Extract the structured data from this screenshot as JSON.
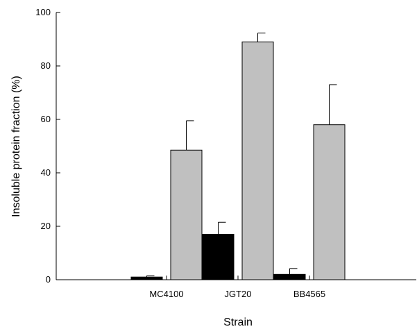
{
  "chart_data": {
    "type": "bar",
    "title": "",
    "xlabel": "Strain",
    "ylabel": "Insoluble protein fraction (%)",
    "categories": [
      "MC4100",
      "JGT20",
      "BB4565"
    ],
    "series": [
      {
        "color": "#000000",
        "values": [
          1,
          17,
          2
        ],
        "errors": [
          0.5,
          4.5,
          2.2
        ]
      },
      {
        "color": "#c0c0c0",
        "values": [
          48.5,
          89,
          58
        ],
        "errors": [
          11,
          3.3,
          15
        ]
      }
    ],
    "ylim": [
      0,
      100
    ],
    "yticks": [
      0,
      20,
      40,
      60,
      80,
      100
    ],
    "grid": false,
    "legend": "none"
  }
}
